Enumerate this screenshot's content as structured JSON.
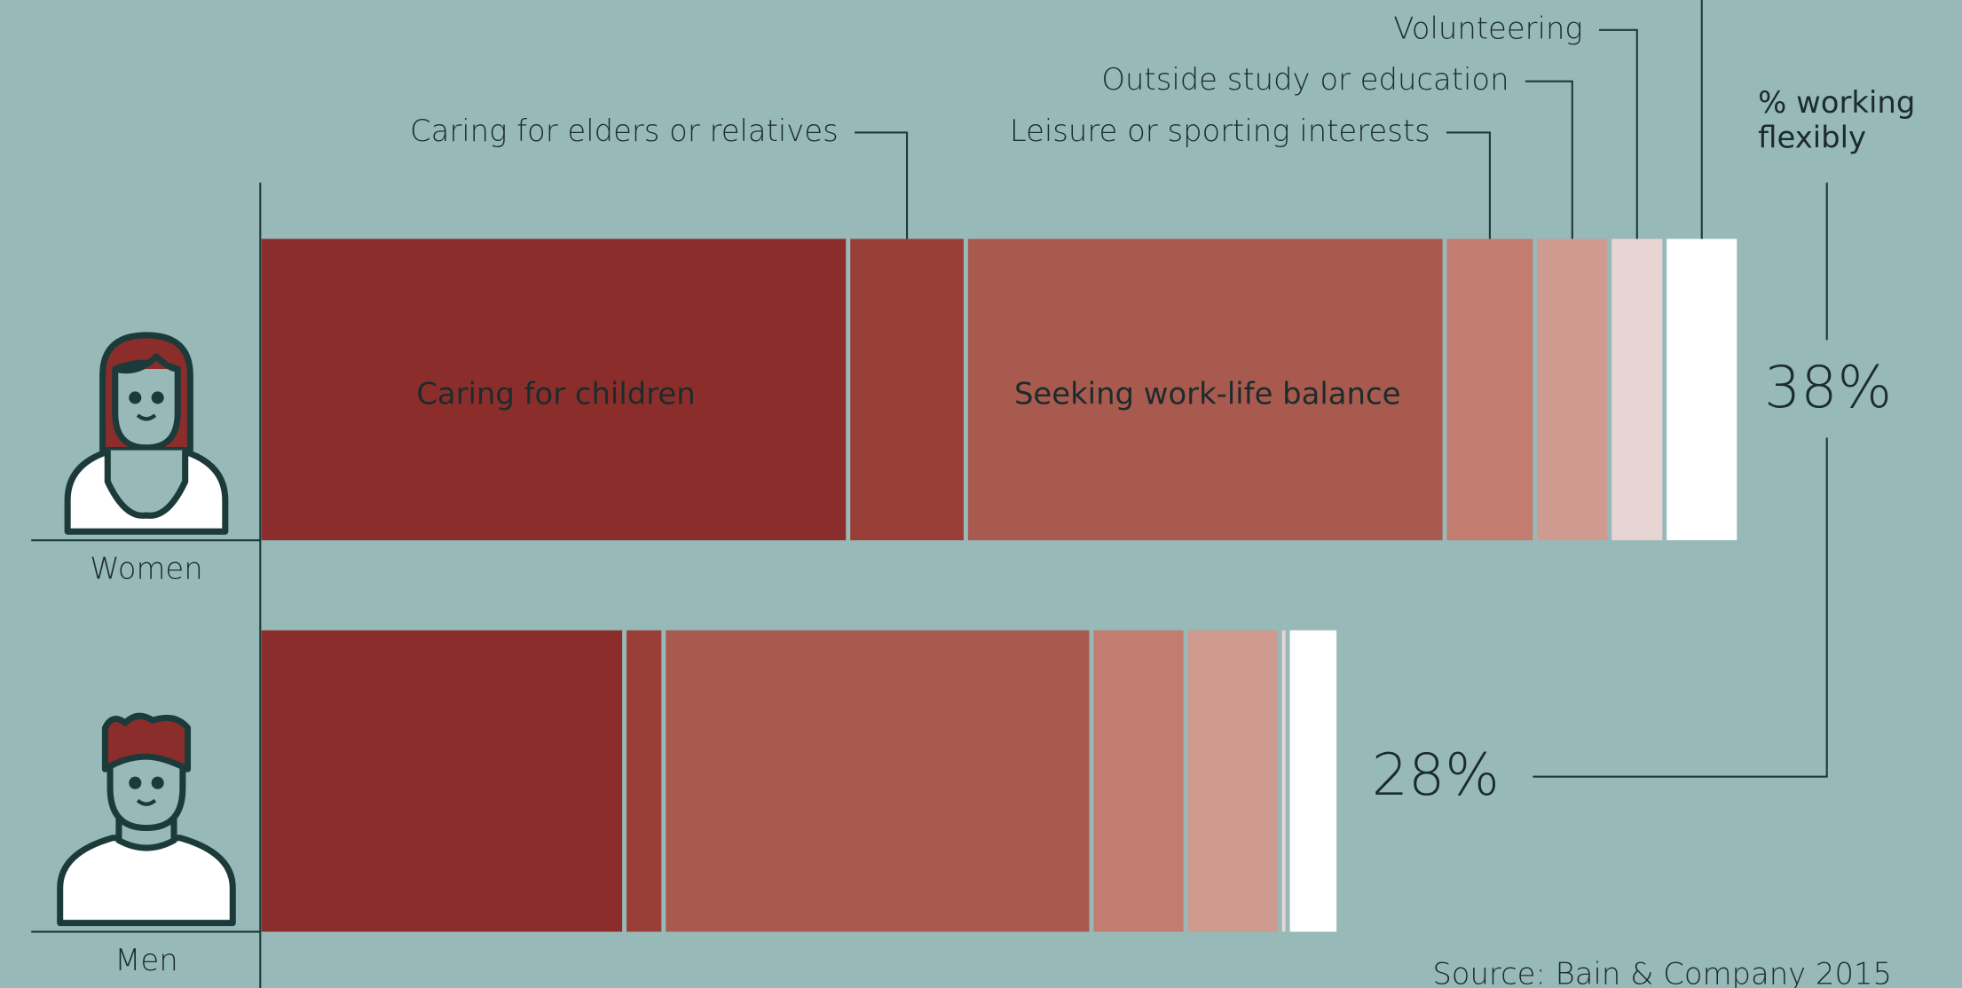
{
  "chart_data": {
    "type": "stacked-bar",
    "orientation": "horizontal",
    "categories": [
      "Women",
      "Men"
    ],
    "series": [
      {
        "name": "Caring for children",
        "color": "#8b2e2b",
        "values": [
          15,
          9.3
        ]
      },
      {
        "name": "Caring for elders or relatives",
        "color": "#9a3f38",
        "values": [
          3,
          1
        ]
      },
      {
        "name": "Seeking work-life balance",
        "color": "#a85a4f",
        "values": [
          12.2,
          10.9
        ]
      },
      {
        "name": "Leisure or sporting interests",
        "color": "#c27d70",
        "values": [
          2.3,
          2.4
        ]
      },
      {
        "name": "Outside study or education",
        "color": "#cf9a90",
        "values": [
          1.9,
          2.4
        ]
      },
      {
        "name": "Volunteering",
        "color": "#e8d5d3",
        "values": [
          1.4,
          0.2
        ]
      },
      {
        "name": null,
        "color": "#ffffff",
        "values": [
          1.9,
          1.3
        ]
      }
    ],
    "totals": {
      "values": [
        38,
        28
      ],
      "value_labels": [
        "38%",
        "28%"
      ]
    },
    "annotation": "% working flexibly",
    "source": "Source: Bain & Company 2015"
  }
}
